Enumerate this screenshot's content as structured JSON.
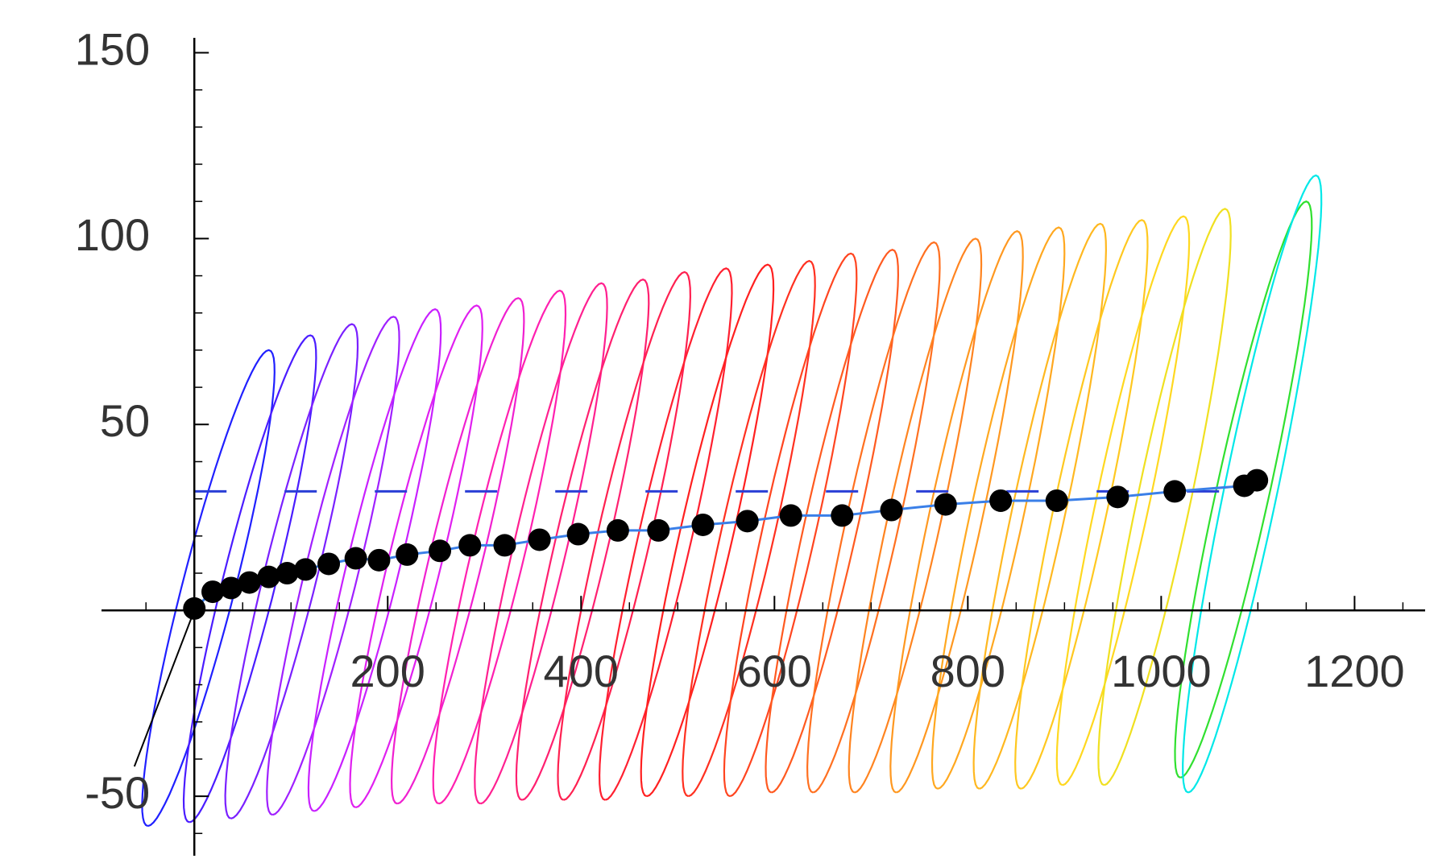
{
  "chart_data": {
    "type": "scatter",
    "xlim": [
      -96,
      1273
    ],
    "ylim": [
      -66,
      154
    ],
    "xticks": [
      200,
      400,
      600,
      800,
      1000,
      1200
    ],
    "yticks": [
      -50,
      50,
      100,
      150
    ],
    "xminorticks": [
      -50,
      0,
      50,
      100,
      150,
      200,
      250,
      300,
      350,
      400,
      450,
      500,
      550,
      600,
      650,
      700,
      750,
      800,
      850,
      900,
      950,
      1000,
      1050,
      1100,
      1150,
      1200,
      1250
    ],
    "yminorticks": [
      -60,
      -50,
      -40,
      -30,
      -20,
      -10,
      10,
      20,
      30,
      40,
      50,
      60,
      70,
      80,
      90,
      100,
      110,
      120,
      130,
      140,
      150
    ],
    "loop_width": 28,
    "loops": [
      {
        "x": [
          -48,
          77
        ],
        "y": [
          -58,
          70
        ],
        "color": "#2020ff"
      },
      {
        "x": [
          -5,
          120
        ],
        "y": [
          -57,
          74
        ],
        "color": "#4a1cff"
      },
      {
        "x": [
          38,
          163
        ],
        "y": [
          -56,
          77
        ],
        "color": "#7a20ff"
      },
      {
        "x": [
          81,
          206
        ],
        "y": [
          -55,
          79
        ],
        "color": "#a020ff"
      },
      {
        "x": [
          124,
          249
        ],
        "y": [
          -54,
          81
        ],
        "color": "#c820ff"
      },
      {
        "x": [
          167,
          292
        ],
        "y": [
          -53,
          82
        ],
        "color": "#e020f0"
      },
      {
        "x": [
          210,
          335
        ],
        "y": [
          -52,
          84
        ],
        "color": "#f020d0"
      },
      {
        "x": [
          253,
          378
        ],
        "y": [
          -52,
          86
        ],
        "color": "#ff20b0"
      },
      {
        "x": [
          296,
          421
        ],
        "y": [
          -52,
          88
        ],
        "color": "#ff2090"
      },
      {
        "x": [
          339,
          464
        ],
        "y": [
          -51,
          89
        ],
        "color": "#ff2070"
      },
      {
        "x": [
          382,
          507
        ],
        "y": [
          -51,
          91
        ],
        "color": "#ff2050"
      },
      {
        "x": [
          425,
          550
        ],
        "y": [
          -51,
          92
        ],
        "color": "#ff2030"
      },
      {
        "x": [
          468,
          593
        ],
        "y": [
          -50,
          93
        ],
        "color": "#ff2020"
      },
      {
        "x": [
          511,
          636
        ],
        "y": [
          -50,
          94
        ],
        "color": "#ff3020"
      },
      {
        "x": [
          554,
          679
        ],
        "y": [
          -50,
          96
        ],
        "color": "#ff4520"
      },
      {
        "x": [
          597,
          722
        ],
        "y": [
          -49,
          97
        ],
        "color": "#ff5a20"
      },
      {
        "x": [
          640,
          765
        ],
        "y": [
          -49,
          99
        ],
        "color": "#ff7020"
      },
      {
        "x": [
          683,
          808
        ],
        "y": [
          -49,
          100
        ],
        "color": "#ff8420"
      },
      {
        "x": [
          726,
          851
        ],
        "y": [
          -49,
          102
        ],
        "color": "#ff9820"
      },
      {
        "x": [
          769,
          894
        ],
        "y": [
          -48,
          103
        ],
        "color": "#ffa820"
      },
      {
        "x": [
          812,
          937
        ],
        "y": [
          -48,
          104
        ],
        "color": "#ffb820"
      },
      {
        "x": [
          855,
          980
        ],
        "y": [
          -48,
          105
        ],
        "color": "#ffc820"
      },
      {
        "x": [
          898,
          1023
        ],
        "y": [
          -47,
          106
        ],
        "color": "#ffd820"
      },
      {
        "x": [
          941,
          1066
        ],
        "y": [
          -47,
          108
        ],
        "color": "#f0e020"
      },
      {
        "x": [
          1020,
          1150
        ],
        "y": [
          -45,
          110
        ],
        "color": "#30e030"
      },
      {
        "x": [
          1028,
          1160
        ],
        "y": [
          -49,
          117
        ],
        "color": "#00e8e8"
      }
    ],
    "hline": {
      "y": 32,
      "x": [
        0,
        1100
      ],
      "color": "#2a3fd6"
    },
    "series": [
      {
        "style": "line",
        "color": "#000000",
        "x": [
          -62,
          0
        ],
        "y": [
          -42,
          0
        ]
      },
      {
        "style": "line",
        "color": "#3a7fe8",
        "x": [
          0,
          19,
          38,
          57,
          77,
          96,
          115,
          139,
          167,
          191,
          220,
          254,
          285,
          321,
          357,
          397,
          438,
          480,
          526,
          572,
          617,
          670,
          721,
          777,
          834,
          892,
          955,
          1014,
          1086,
          1099
        ],
        "y": [
          0.5,
          5,
          6,
          7.5,
          9,
          10,
          11,
          12.5,
          14,
          13.5,
          15,
          16,
          17.5,
          17.5,
          19,
          20.5,
          21.5,
          21.5,
          23,
          24,
          25.5,
          25.5,
          27,
          28.5,
          29.5,
          29.5,
          30.5,
          32,
          33.5,
          35
        ]
      },
      {
        "style": "markers",
        "color": "#000000",
        "x": [
          0,
          19,
          38,
          57,
          77,
          96,
          115,
          139,
          167,
          191,
          220,
          254,
          285,
          321,
          357,
          397,
          438,
          480,
          526,
          572,
          617,
          670,
          721,
          777,
          834,
          892,
          955,
          1014,
          1086,
          1099
        ],
        "y": [
          0.5,
          5,
          6,
          7.5,
          9,
          10,
          11,
          12.5,
          14,
          13.5,
          15,
          16,
          17.5,
          17.5,
          19,
          20.5,
          21.5,
          21.5,
          23,
          24,
          25.5,
          25.5,
          27,
          28.5,
          29.5,
          29.5,
          30.5,
          32,
          33.5,
          35
        ]
      }
    ]
  }
}
